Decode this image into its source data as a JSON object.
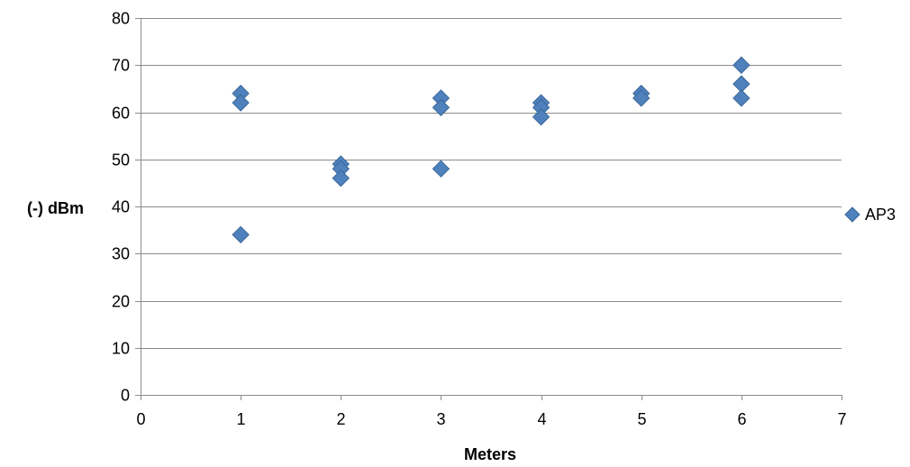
{
  "chart_data": {
    "type": "scatter",
    "title": "",
    "xlabel": "Meters",
    "ylabel": "(-) dBm",
    "xlim": [
      0,
      7
    ],
    "ylim": [
      0,
      80
    ],
    "x_ticks": [
      "0",
      "1",
      "2",
      "3",
      "4",
      "5",
      "6",
      "7"
    ],
    "y_ticks": [
      "0",
      "10",
      "20",
      "30",
      "40",
      "50",
      "60",
      "70",
      "80"
    ],
    "grid": "horizontal",
    "legend": "right",
    "marker": "diamond",
    "series": [
      {
        "name": "AP3",
        "color": "#4F81BD",
        "points": [
          {
            "x": 1,
            "y": 64
          },
          {
            "x": 1,
            "y": 62
          },
          {
            "x": 1,
            "y": 34
          },
          {
            "x": 2,
            "y": 49
          },
          {
            "x": 2,
            "y": 48
          },
          {
            "x": 2,
            "y": 46
          },
          {
            "x": 3,
            "y": 63
          },
          {
            "x": 3,
            "y": 61
          },
          {
            "x": 3,
            "y": 48
          },
          {
            "x": 4,
            "y": 62
          },
          {
            "x": 4,
            "y": 61
          },
          {
            "x": 4,
            "y": 59
          },
          {
            "x": 5,
            "y": 64
          },
          {
            "x": 5,
            "y": 63
          },
          {
            "x": 6,
            "y": 70
          },
          {
            "x": 6,
            "y": 66
          },
          {
            "x": 6,
            "y": 63
          }
        ]
      }
    ]
  }
}
